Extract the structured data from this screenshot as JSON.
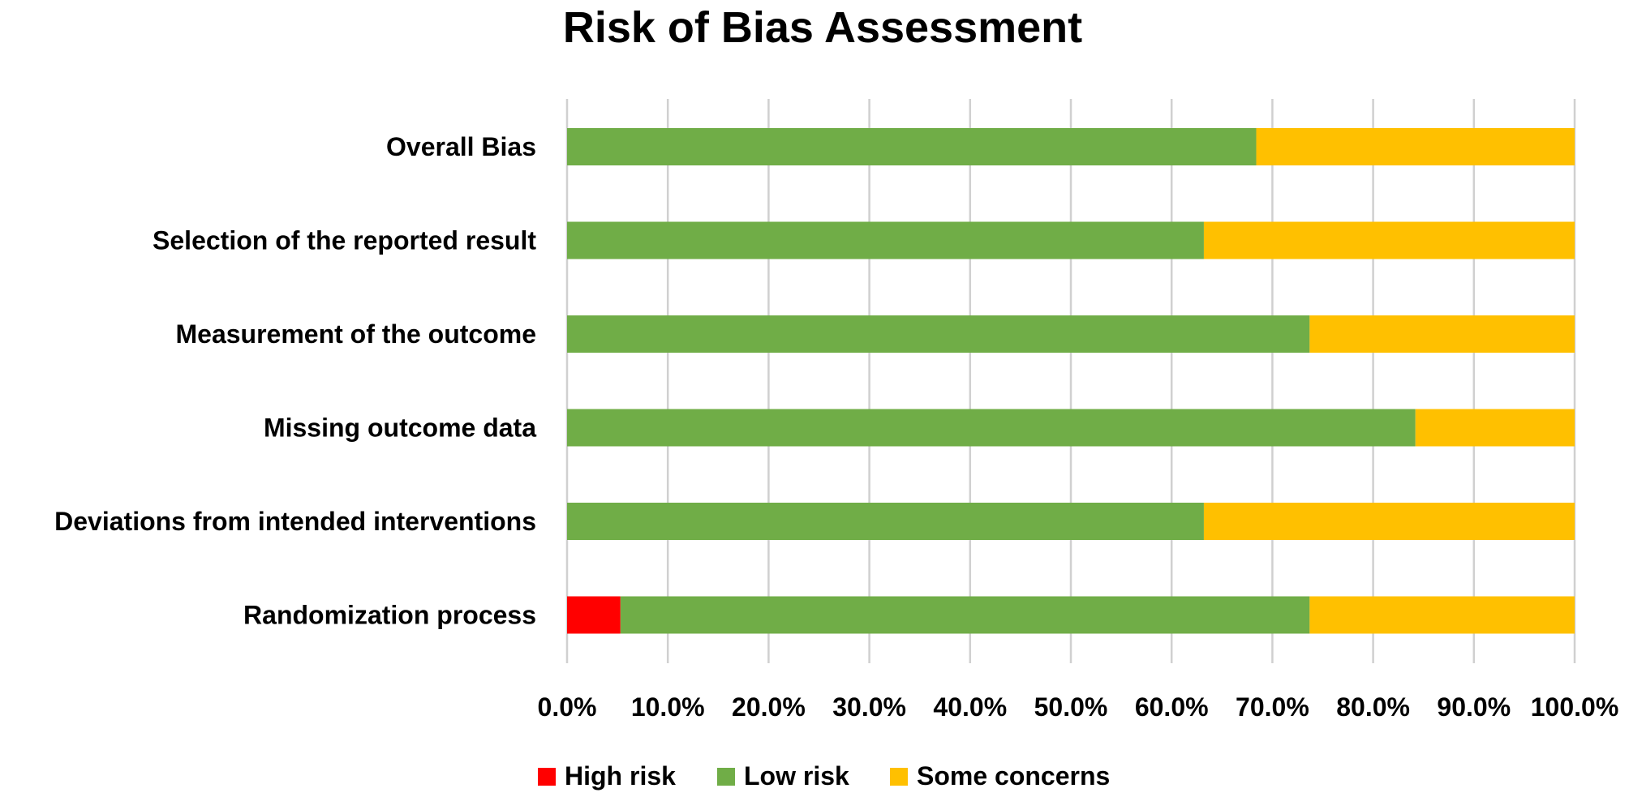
{
  "chart_data": {
    "type": "bar",
    "orientation": "horizontal",
    "stacked": true,
    "title": "Risk of Bias Assessment",
    "xlabel": "",
    "ylabel": "",
    "xlim": [
      0,
      100
    ],
    "x_tick_labels": [
      "0.0%",
      "10.0%",
      "20.0%",
      "30.0%",
      "40.0%",
      "50.0%",
      "60.0%",
      "70.0%",
      "80.0%",
      "90.0%",
      "100.0%"
    ],
    "grid": true,
    "legend_position": "bottom",
    "categories": [
      "Overall Bias",
      "Selection of the reported result",
      "Measurement of the outcome",
      "Missing outcome data",
      "Deviations from intended interventions",
      "Randomization process"
    ],
    "series": [
      {
        "name": "High risk",
        "color": "#ff0000",
        "values": [
          0,
          0,
          0,
          0,
          0,
          5.3
        ]
      },
      {
        "name": "Low risk",
        "color": "#70ad47",
        "values": [
          68.4,
          63.2,
          73.7,
          84.2,
          63.2,
          68.4
        ]
      },
      {
        "name": "Some concerns",
        "color": "#ffc000",
        "values": [
          31.6,
          36.8,
          26.3,
          15.8,
          36.8,
          26.3
        ]
      }
    ]
  }
}
